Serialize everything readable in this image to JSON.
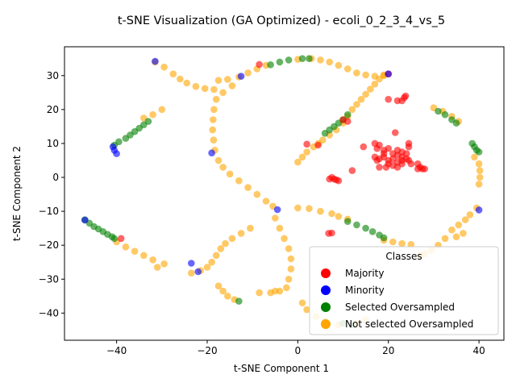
{
  "chart_data": {
    "type": "scatter",
    "title": "t-SNE Visualization (GA Optimized) - ecoli_0_2_3_4_vs_5",
    "xlabel": "t-SNE Component 1",
    "ylabel": "t-SNE Component 2",
    "xlim": [
      -51.5,
      45.5
    ],
    "ylim": [
      -48,
      38.5
    ],
    "xticks": [
      "−40",
      "−20",
      "0",
      "20",
      "40"
    ],
    "xtick_values": [
      -40,
      -20,
      0,
      20,
      40
    ],
    "yticks": [
      "−40",
      "−30",
      "−20",
      "−10",
      "0",
      "10",
      "20",
      "30"
    ],
    "ytick_values": [
      -40,
      -30,
      -20,
      -10,
      0,
      10,
      20,
      30
    ],
    "grid": false,
    "legend": {
      "title": "Classes",
      "placement": "lower-right",
      "entries": [
        "Majority",
        "Minority",
        "Selected Oversampled",
        "Not selected Oversampled"
      ]
    },
    "colors": {
      "Majority": "#ff0000",
      "Minority": "#0000ff",
      "Selected Oversampled": "#008000",
      "Not selected Oversampled": "#ffa500"
    },
    "series": [
      {
        "name": "Not selected Oversampled",
        "points": [
          [
            -31.5,
            34
          ],
          [
            -29.5,
            32.5
          ],
          [
            -27.5,
            30.5
          ],
          [
            -26,
            29
          ],
          [
            -24.5,
            27.8
          ],
          [
            -22.5,
            26.8
          ],
          [
            -20.5,
            26.2
          ],
          [
            -18.5,
            25.9
          ],
          [
            -17.5,
            28.6
          ],
          [
            -15.5,
            28.9
          ],
          [
            -13,
            29.6
          ],
          [
            -11,
            30.8
          ],
          [
            -9,
            32
          ],
          [
            -7,
            33
          ],
          [
            0,
            34.8
          ],
          [
            3,
            35
          ],
          [
            5,
            34.6
          ],
          [
            7,
            34
          ],
          [
            9,
            33
          ],
          [
            11,
            32
          ],
          [
            13,
            30.8
          ],
          [
            15,
            30.2
          ],
          [
            17,
            29.8
          ],
          [
            19,
            30.2
          ],
          [
            -18,
            23
          ],
          [
            -18.5,
            20
          ],
          [
            -18.7,
            17
          ],
          [
            -18.8,
            14
          ],
          [
            -18.6,
            11
          ],
          [
            -18.3,
            8
          ],
          [
            -17.5,
            5
          ],
          [
            -16.5,
            3
          ],
          [
            -15,
            1
          ],
          [
            -13,
            -1
          ],
          [
            -11,
            -3
          ],
          [
            -9,
            -5
          ],
          [
            -7,
            -7
          ],
          [
            -5.5,
            -8.5
          ],
          [
            -16.5,
            25
          ],
          [
            -14.5,
            27
          ],
          [
            -40,
            -19
          ],
          [
            -38,
            -20.5
          ],
          [
            -36,
            -21.8
          ],
          [
            -34,
            -23
          ],
          [
            -32,
            -24.3
          ],
          [
            -31,
            -26.5
          ],
          [
            -29.5,
            -25.5
          ],
          [
            -23.5,
            -28.2
          ],
          [
            -21.5,
            -27.5
          ],
          [
            -20,
            -26.5
          ],
          [
            -19,
            -25
          ],
          [
            -18,
            -23
          ],
          [
            -17,
            -21
          ],
          [
            -16,
            -19.5
          ],
          [
            -14.5,
            -18
          ],
          [
            -12.5,
            -16.5
          ],
          [
            -10.5,
            -15
          ],
          [
            -17.5,
            -32
          ],
          [
            -16.5,
            -33.5
          ],
          [
            -15.5,
            -35
          ],
          [
            -14,
            -36
          ],
          [
            -30,
            20
          ],
          [
            -32,
            18.5
          ],
          [
            -34,
            17.5
          ],
          [
            -8.5,
            -34
          ],
          [
            -6,
            -34
          ],
          [
            -4,
            -33.5
          ],
          [
            -5,
            -12
          ],
          [
            -4,
            -15
          ],
          [
            -3,
            -18
          ],
          [
            -2,
            -21
          ],
          [
            -1.5,
            -24
          ],
          [
            -1.5,
            -27
          ],
          [
            -2,
            -30
          ],
          [
            -2.5,
            -32.5
          ],
          [
            -5,
            -33.5
          ],
          [
            1,
            -37
          ],
          [
            2,
            -39
          ],
          [
            4,
            -41
          ],
          [
            6,
            -42.5
          ],
          [
            9,
            -43.5
          ],
          [
            13,
            -43
          ],
          [
            15,
            -42
          ],
          [
            0,
            -9
          ],
          [
            2.5,
            -9.2
          ],
          [
            5,
            -10
          ],
          [
            7.5,
            -10.7
          ],
          [
            9,
            -11.5
          ],
          [
            11,
            -12.3
          ],
          [
            19,
            -18.5
          ],
          [
            21,
            -19
          ],
          [
            23,
            -19.5
          ],
          [
            25,
            -19.8
          ],
          [
            0,
            4.5
          ],
          [
            1,
            6
          ],
          [
            2,
            7.5
          ],
          [
            3.5,
            9
          ],
          [
            4.5,
            10
          ],
          [
            5.5,
            11
          ],
          [
            7,
            12.5
          ],
          [
            8.5,
            14
          ],
          [
            10,
            16
          ],
          [
            11,
            18
          ],
          [
            12,
            20
          ],
          [
            13,
            21.5
          ],
          [
            14,
            23
          ],
          [
            15,
            24.5
          ],
          [
            16,
            26
          ],
          [
            17,
            27.5
          ],
          [
            18,
            29
          ],
          [
            19,
            30
          ],
          [
            30,
            20.5
          ],
          [
            32,
            19.5
          ],
          [
            34,
            18
          ],
          [
            35.5,
            16.5
          ],
          [
            39,
            6
          ],
          [
            40,
            4
          ],
          [
            40.2,
            2
          ],
          [
            40.2,
            0
          ],
          [
            40,
            -2
          ],
          [
            39.5,
            -9
          ],
          [
            38,
            -11
          ],
          [
            37,
            -12.5
          ],
          [
            35.5,
            -14
          ],
          [
            34,
            -15.5
          ],
          [
            32.5,
            -18
          ],
          [
            31,
            -20
          ],
          [
            29.5,
            -21.5
          ],
          [
            28,
            -22.5
          ],
          [
            27,
            -23
          ],
          [
            36.5,
            -16.5
          ],
          [
            35,
            -17.5
          ]
        ]
      },
      {
        "name": "Selected Oversampled",
        "points": [
          [
            -47,
            -12.5
          ],
          [
            -46,
            -13.5
          ],
          [
            -45,
            -14.5
          ],
          [
            -44,
            -15.2
          ],
          [
            -43,
            -16
          ],
          [
            -42,
            -16.8
          ],
          [
            -41,
            -17.5
          ],
          [
            -40.5,
            -18
          ],
          [
            -40.5,
            9.5
          ],
          [
            -39.5,
            10.5
          ],
          [
            -38,
            11.5
          ],
          [
            -37,
            12.5
          ],
          [
            -36,
            13.5
          ],
          [
            -35,
            14.5
          ],
          [
            -34,
            15.5
          ],
          [
            -33,
            16.5
          ],
          [
            -6,
            33.2
          ],
          [
            -4,
            34
          ],
          [
            -2,
            34.6
          ],
          [
            1,
            35
          ],
          [
            2.5,
            35
          ],
          [
            6,
            13
          ],
          [
            7,
            14
          ],
          [
            8,
            15
          ],
          [
            9,
            16
          ],
          [
            10,
            17
          ],
          [
            11,
            18.5
          ],
          [
            11,
            -13
          ],
          [
            13,
            -14
          ],
          [
            15,
            -15
          ],
          [
            16.5,
            -16
          ],
          [
            18,
            -17
          ],
          [
            19,
            -17.8
          ],
          [
            31,
            19.5
          ],
          [
            32.5,
            18.5
          ],
          [
            34,
            17
          ],
          [
            35,
            16
          ],
          [
            38.5,
            10
          ],
          [
            39,
            9
          ],
          [
            39.5,
            8
          ],
          [
            40,
            7.5
          ],
          [
            -13,
            -36.5
          ],
          [
            6,
            -42.5
          ],
          [
            10,
            -43
          ],
          [
            12,
            -43.5
          ]
        ]
      },
      {
        "name": "Majority",
        "points": [
          [
            -39,
            -18
          ],
          [
            -8.5,
            33.3
          ],
          [
            20,
            30.5
          ],
          [
            23.5,
            23.5
          ],
          [
            23.8,
            24
          ],
          [
            20,
            23
          ],
          [
            22,
            22.6
          ],
          [
            23,
            22.6
          ],
          [
            2,
            9.8
          ],
          [
            4.5,
            9.5
          ],
          [
            10,
            17
          ],
          [
            11,
            16.5
          ],
          [
            12,
            2
          ],
          [
            14.5,
            9
          ],
          [
            21.5,
            13.2
          ],
          [
            17,
            10
          ],
          [
            18,
            9.5
          ],
          [
            17.5,
            8.5
          ],
          [
            19,
            8
          ],
          [
            20,
            8.5
          ],
          [
            21,
            7
          ],
          [
            22,
            6.5
          ],
          [
            23,
            7.5
          ],
          [
            24,
            7
          ],
          [
            24.5,
            10
          ],
          [
            24.5,
            9
          ],
          [
            17,
            6
          ],
          [
            18,
            5.5
          ],
          [
            19,
            6
          ],
          [
            20,
            5
          ],
          [
            21,
            5.5
          ],
          [
            22,
            4.5
          ],
          [
            23,
            5
          ],
          [
            24,
            5.5
          ],
          [
            20,
            4
          ],
          [
            21,
            3.5
          ],
          [
            22,
            3
          ],
          [
            23,
            4
          ],
          [
            18,
            3
          ],
          [
            19.5,
            3
          ],
          [
            17.5,
            5
          ],
          [
            19,
            7
          ],
          [
            22,
            8
          ],
          [
            23,
            6
          ],
          [
            25,
            4
          ],
          [
            26.5,
            4
          ],
          [
            27,
            3
          ],
          [
            27.5,
            2.5
          ],
          [
            28,
            2.5
          ],
          [
            26.5,
            2.5
          ],
          [
            24.5,
            5
          ],
          [
            7,
            -0.5
          ],
          [
            8,
            -0.5
          ],
          [
            9,
            -1
          ],
          [
            7.5,
            0
          ],
          [
            8.5,
            -0.7
          ],
          [
            6.8,
            -16.5
          ],
          [
            7.5,
            -16.4
          ]
        ]
      },
      {
        "name": "Minority",
        "points": [
          [
            -47,
            -12.6
          ],
          [
            -40.8,
            9
          ],
          [
            -40.5,
            8
          ],
          [
            -40,
            7
          ],
          [
            -31.5,
            34.2
          ],
          [
            -12.5,
            29.8
          ],
          [
            -19,
            7.2
          ],
          [
            -23.5,
            -25.3
          ],
          [
            -22,
            -27.8
          ],
          [
            -4.5,
            -9.5
          ],
          [
            20,
            30.5
          ],
          [
            40,
            -9.6
          ]
        ]
      }
    ]
  }
}
